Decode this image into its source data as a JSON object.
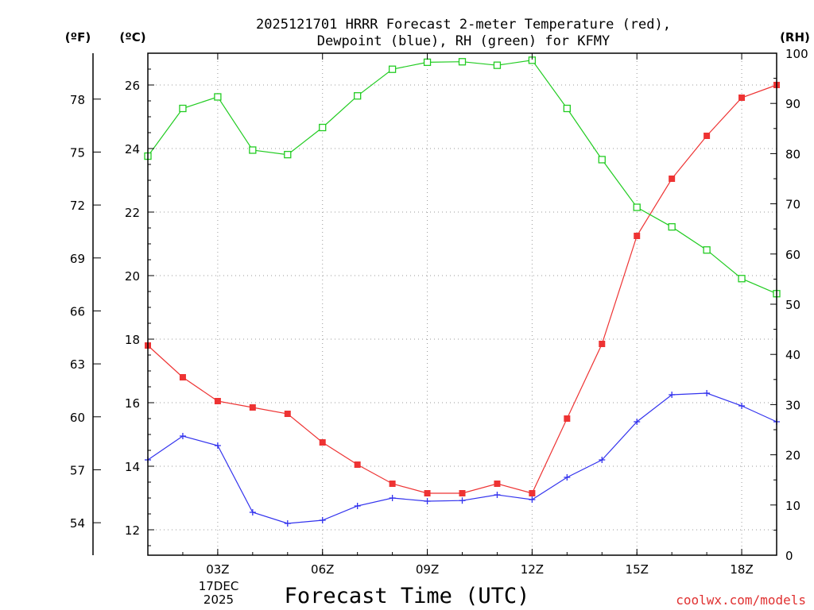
{
  "chart_data": {
    "type": "line",
    "title_line1": "2025121701 HRRR Forecast 2-meter Temperature (red),",
    "title_line2": "Dewpoint (blue), RH (green) for KFMY",
    "unit_f": "(ºF)",
    "unit_c": "(ºC)",
    "unit_rh": "(RH)",
    "xlabel": "Forecast Time (UTC)",
    "credit": "coolwx.com/models",
    "date_label_1": "17DEC",
    "date_label_2": "2025",
    "x": [
      1,
      2,
      3,
      4,
      5,
      6,
      7,
      8,
      9,
      10,
      11,
      12,
      13,
      14,
      15,
      16,
      17,
      18,
      19
    ],
    "xlim": [
      1,
      19
    ],
    "x_ticks": [
      3,
      6,
      9,
      12,
      15,
      18
    ],
    "x_tick_labels": [
      "03Z",
      "06Z",
      "09Z",
      "12Z",
      "15Z",
      "18Z"
    ],
    "celsius_axis": {
      "lim": [
        11.2,
        27
      ],
      "ticks": [
        12,
        14,
        16,
        18,
        20,
        22,
        24,
        26
      ],
      "labels": [
        "12",
        "14",
        "16",
        "18",
        "20",
        "22",
        "24",
        "26"
      ]
    },
    "fahrenheit_axis": {
      "ticks": [
        54,
        57,
        60,
        63,
        66,
        69,
        72,
        75,
        78
      ],
      "labels": [
        "54",
        "57",
        "60",
        "63",
        "66",
        "69",
        "72",
        "75",
        "78"
      ]
    },
    "rh_axis": {
      "lim": [
        0,
        100
      ],
      "ticks": [
        0,
        10,
        20,
        30,
        40,
        50,
        60,
        70,
        80,
        90,
        100
      ],
      "labels": [
        "0",
        "10",
        "20",
        "30",
        "40",
        "50",
        "60",
        "70",
        "80",
        "90",
        "100"
      ]
    },
    "series": [
      {
        "name": "Temperature",
        "axis": "celsius",
        "color": "#ee3333",
        "marker": "filled-square",
        "values": [
          17.8,
          16.8,
          16.05,
          15.85,
          15.65,
          14.75,
          14.05,
          13.45,
          13.15,
          13.15,
          13.45,
          13.15,
          15.5,
          17.85,
          21.25,
          23.05,
          24.4,
          25.6,
          26.0
        ]
      },
      {
        "name": "Dewpoint",
        "axis": "celsius",
        "color": "#3333ee",
        "marker": "plus",
        "values": [
          14.2,
          14.95,
          14.65,
          12.55,
          12.2,
          12.3,
          12.75,
          13.0,
          12.9,
          12.92,
          13.1,
          12.95,
          13.65,
          14.2,
          15.4,
          16.25,
          16.3,
          15.9,
          15.4
        ]
      },
      {
        "name": "RH",
        "axis": "rh",
        "color": "#22cc22",
        "marker": "open-square",
        "values": [
          79.5,
          89,
          91.3,
          80.7,
          79.8,
          85.2,
          91.5,
          96.8,
          98.2,
          98.3,
          97.6,
          98.6,
          89,
          78.8,
          69.3,
          65.4,
          60.8,
          55.1,
          52.1
        ]
      }
    ]
  }
}
